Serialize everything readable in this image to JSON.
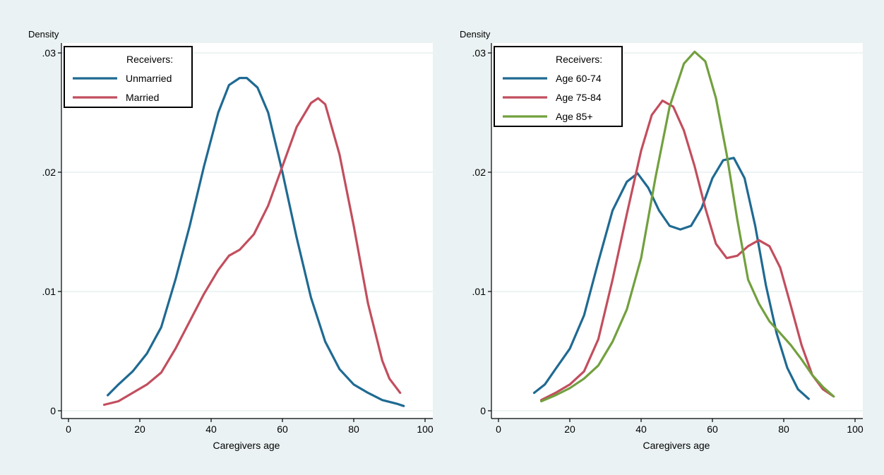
{
  "figure": {
    "background_color": "#eaf2f3",
    "panel_color": "#ffffff",
    "grid_color": "#e7f0f1"
  },
  "chart_data": [
    {
      "type": "line",
      "ylabel": "Density",
      "xlabel": "Caregivers age",
      "xlim": [
        0,
        100
      ],
      "ylim": [
        0,
        0.03
      ],
      "xticks": [
        0,
        20,
        40,
        60,
        80,
        100
      ],
      "xtick_labels": [
        "0",
        "20",
        "40",
        "60",
        "80",
        "100"
      ],
      "yticks": [
        0,
        0.01,
        0.02,
        0.03
      ],
      "ytick_labels": [
        "0",
        ".01",
        ".02",
        ".03"
      ],
      "grid": true,
      "legend": {
        "title": "Receivers:",
        "position": "top-left"
      },
      "series": [
        {
          "name": "Unmarried",
          "color": "#1f6a92",
          "x": [
            11,
            14,
            18,
            22,
            26,
            30,
            34,
            38,
            42,
            45,
            48,
            50,
            53,
            56,
            60,
            64,
            68,
            72,
            76,
            80,
            84,
            88,
            92,
            94
          ],
          "y": [
            0.0013,
            0.0022,
            0.0033,
            0.0048,
            0.007,
            0.011,
            0.0155,
            0.0205,
            0.025,
            0.0273,
            0.0279,
            0.0279,
            0.0271,
            0.025,
            0.02,
            0.0145,
            0.0095,
            0.0058,
            0.0035,
            0.0022,
            0.0015,
            0.0009,
            0.0006,
            0.0004
          ]
        },
        {
          "name": "Married",
          "color": "#c24e5e",
          "x": [
            10,
            14,
            18,
            22,
            26,
            30,
            34,
            38,
            42,
            45,
            48,
            52,
            56,
            60,
            64,
            68,
            70,
            72,
            76,
            80,
            84,
            88,
            90,
            93
          ],
          "y": [
            0.0005,
            0.0008,
            0.0015,
            0.0022,
            0.0032,
            0.0052,
            0.0075,
            0.0098,
            0.0118,
            0.013,
            0.0135,
            0.0148,
            0.0172,
            0.0205,
            0.0238,
            0.0258,
            0.0262,
            0.0257,
            0.0215,
            0.0155,
            0.009,
            0.0042,
            0.0027,
            0.0015
          ]
        }
      ]
    },
    {
      "type": "line",
      "ylabel": "Density",
      "xlabel": "Caregivers age",
      "xlim": [
        0,
        100
      ],
      "ylim": [
        0,
        0.03
      ],
      "xticks": [
        0,
        20,
        40,
        60,
        80,
        100
      ],
      "xtick_labels": [
        "0",
        "20",
        "40",
        "60",
        "80",
        "100"
      ],
      "yticks": [
        0,
        0.01,
        0.02,
        0.03
      ],
      "ytick_labels": [
        "0",
        ".01",
        ".02",
        ".03"
      ],
      "grid": true,
      "legend": {
        "title": "Receivers:",
        "position": "top-left"
      },
      "series": [
        {
          "name": "Age 60-74",
          "color": "#1f6a92",
          "x": [
            10,
            13,
            16,
            20,
            24,
            28,
            32,
            36,
            39,
            42,
            45,
            48,
            51,
            54,
            57,
            60,
            63,
            66,
            69,
            72,
            75,
            78,
            81,
            84,
            87
          ],
          "y": [
            0.0015,
            0.0022,
            0.0035,
            0.0052,
            0.008,
            0.0125,
            0.0168,
            0.0192,
            0.0199,
            0.0187,
            0.0168,
            0.0155,
            0.0152,
            0.0155,
            0.017,
            0.0195,
            0.021,
            0.0212,
            0.0195,
            0.0155,
            0.0105,
            0.0065,
            0.0036,
            0.0018,
            0.001
          ]
        },
        {
          "name": "Age 75-84",
          "color": "#c24e5e",
          "x": [
            12,
            16,
            20,
            24,
            28,
            32,
            36,
            40,
            43,
            46,
            49,
            52,
            55,
            58,
            61,
            64,
            67,
            70,
            73,
            76,
            79,
            82,
            85,
            88,
            91,
            94
          ],
          "y": [
            0.0009,
            0.0015,
            0.0022,
            0.0033,
            0.006,
            0.011,
            0.0165,
            0.0218,
            0.0248,
            0.026,
            0.0255,
            0.0235,
            0.0205,
            0.017,
            0.014,
            0.0128,
            0.013,
            0.0138,
            0.0143,
            0.0138,
            0.012,
            0.0088,
            0.0055,
            0.003,
            0.0018,
            0.0012
          ]
        },
        {
          "name": "Age 85+",
          "color": "#72a03e",
          "x": [
            12,
            16,
            20,
            24,
            28,
            32,
            36,
            40,
            44,
            48,
            52,
            55,
            58,
            61,
            64,
            67,
            70,
            73,
            76,
            79,
            82,
            85,
            88,
            91,
            94
          ],
          "y": [
            0.0008,
            0.0013,
            0.0019,
            0.0027,
            0.0038,
            0.0058,
            0.0085,
            0.0128,
            0.0195,
            0.0255,
            0.0291,
            0.0301,
            0.0293,
            0.0262,
            0.0215,
            0.016,
            0.011,
            0.009,
            0.0075,
            0.0065,
            0.0055,
            0.0043,
            0.003,
            0.002,
            0.0012
          ]
        }
      ]
    }
  ]
}
